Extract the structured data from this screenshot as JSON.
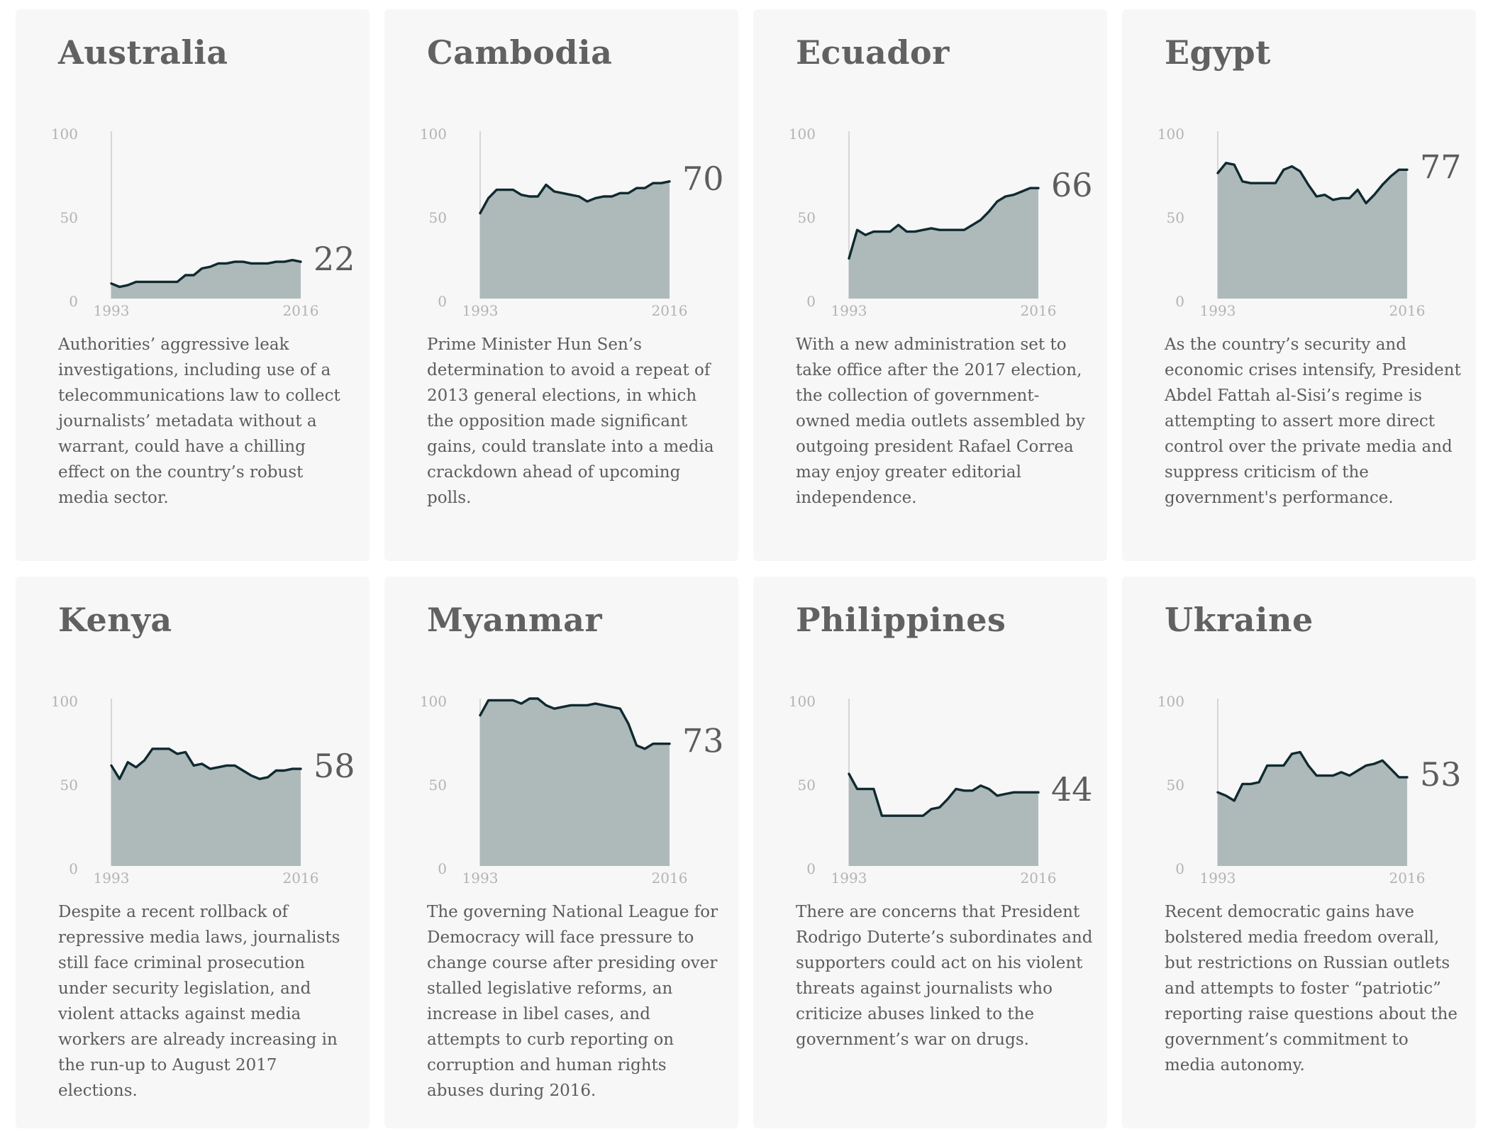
{
  "axis": {
    "y_ticks": [
      "100",
      "50",
      "0"
    ],
    "x_start": "1993",
    "x_end": "2016"
  },
  "chart_data": [
    {
      "type": "area",
      "title": "Australia",
      "x_range": [
        1993,
        2016
      ],
      "ylim": [
        0,
        100
      ],
      "latest_label": "22",
      "values": [
        9,
        7,
        8,
        10,
        10,
        10,
        10,
        10,
        10,
        14,
        14,
        18,
        19,
        21,
        21,
        22,
        22,
        21,
        21,
        21,
        22,
        22,
        23,
        22
      ],
      "description": "Authorities’ aggressive leak investigations, including use of a telecommunications law to collect journalists’ metadata without a warrant, could have a chilling effect on the country’s robust media sector."
    },
    {
      "type": "area",
      "title": "Cambodia",
      "x_range": [
        1993,
        2016
      ],
      "ylim": [
        0,
        100
      ],
      "latest_label": "70",
      "values": [
        51,
        60,
        65,
        65,
        65,
        62,
        61,
        61,
        68,
        64,
        63,
        62,
        61,
        58,
        60,
        61,
        61,
        63,
        63,
        66,
        66,
        69,
        69,
        70
      ],
      "description": "Prime Minister Hun Sen’s determination to avoid a repeat of 2013 general elections, in which the opposition made significant gains, could translate into a media crackdown ahead of upcoming polls."
    },
    {
      "type": "area",
      "title": "Ecuador",
      "x_range": [
        1993,
        2016
      ],
      "ylim": [
        0,
        100
      ],
      "latest_label": "66",
      "values": [
        24,
        41,
        38,
        40,
        40,
        40,
        44,
        40,
        40,
        41,
        42,
        41,
        41,
        41,
        41,
        44,
        47,
        52,
        58,
        61,
        62,
        64,
        66,
        66
      ],
      "description": "With a new administration set to take office after the 2017 election, the collection of government-owned media outlets assembled by outgoing president Rafael Correa may enjoy greater editorial independence."
    },
    {
      "type": "area",
      "title": "Egypt",
      "x_range": [
        1993,
        2016
      ],
      "ylim": [
        0,
        100
      ],
      "latest_label": "77",
      "values": [
        75,
        81,
        80,
        70,
        69,
        69,
        69,
        69,
        77,
        79,
        76,
        68,
        61,
        62,
        59,
        60,
        60,
        65,
        57,
        62,
        68,
        73,
        77,
        77
      ],
      "description": "As the country’s security and economic crises intensify, President Abdel Fattah al-Sisi’s regime is attempting to assert more direct control over the private media and suppress criticism of the government's performance."
    },
    {
      "type": "area",
      "title": "Kenya",
      "x_range": [
        1993,
        2016
      ],
      "ylim": [
        0,
        100
      ],
      "latest_label": "58",
      "values": [
        60,
        52,
        62,
        59,
        63,
        70,
        70,
        70,
        67,
        68,
        60,
        61,
        58,
        59,
        60,
        60,
        57,
        54,
        52,
        53,
        57,
        57,
        58,
        58
      ],
      "description": "Despite a recent rollback of repressive media laws, journalists still face criminal prosecution under security legislation, and violent attacks against media workers are already increasing in the run-up to August 2017 elections."
    },
    {
      "type": "area",
      "title": "Myanmar",
      "x_range": [
        1993,
        2016
      ],
      "ylim": [
        0,
        100
      ],
      "latest_label": "73",
      "values": [
        90,
        99,
        99,
        99,
        99,
        97,
        100,
        100,
        96,
        94,
        95,
        96,
        96,
        96,
        97,
        96,
        95,
        94,
        85,
        72,
        70,
        73,
        73,
        73
      ],
      "description": "The governing National League for Democracy will face pressure to change course after presiding over stalled legislative reforms, an increase in libel cases, and attempts to curb reporting on corruption and human rights abuses during 2016."
    },
    {
      "type": "area",
      "title": "Philippines",
      "x_range": [
        1993,
        2016
      ],
      "ylim": [
        0,
        100
      ],
      "latest_label": "44",
      "values": [
        55,
        46,
        46,
        46,
        30,
        30,
        30,
        30,
        30,
        30,
        34,
        35,
        40,
        46,
        45,
        45,
        48,
        46,
        42,
        43,
        44,
        44,
        44,
        44
      ],
      "description": "There are concerns that President Rodrigo Duterte’s subordinates and supporters could act on his violent threats against journalists who criticize abuses linked to the government’s war on drugs."
    },
    {
      "type": "area",
      "title": "Ukraine",
      "x_range": [
        1993,
        2016
      ],
      "ylim": [
        0,
        100
      ],
      "latest_label": "53",
      "values": [
        44,
        42,
        39,
        49,
        49,
        50,
        60,
        60,
        60,
        67,
        68,
        60,
        54,
        54,
        54,
        56,
        54,
        57,
        60,
        61,
        63,
        58,
        53,
        53
      ],
      "description": "Recent democratic gains have bolstered media freedom overall, but restrictions on Russian outlets and attempts to foster “patriotic” reporting raise questions about the government’s commitment to media autonomy."
    }
  ],
  "colors": {
    "line": "#0f2a30",
    "area": "#aeb9ba",
    "axis": "#c4c4c4"
  }
}
